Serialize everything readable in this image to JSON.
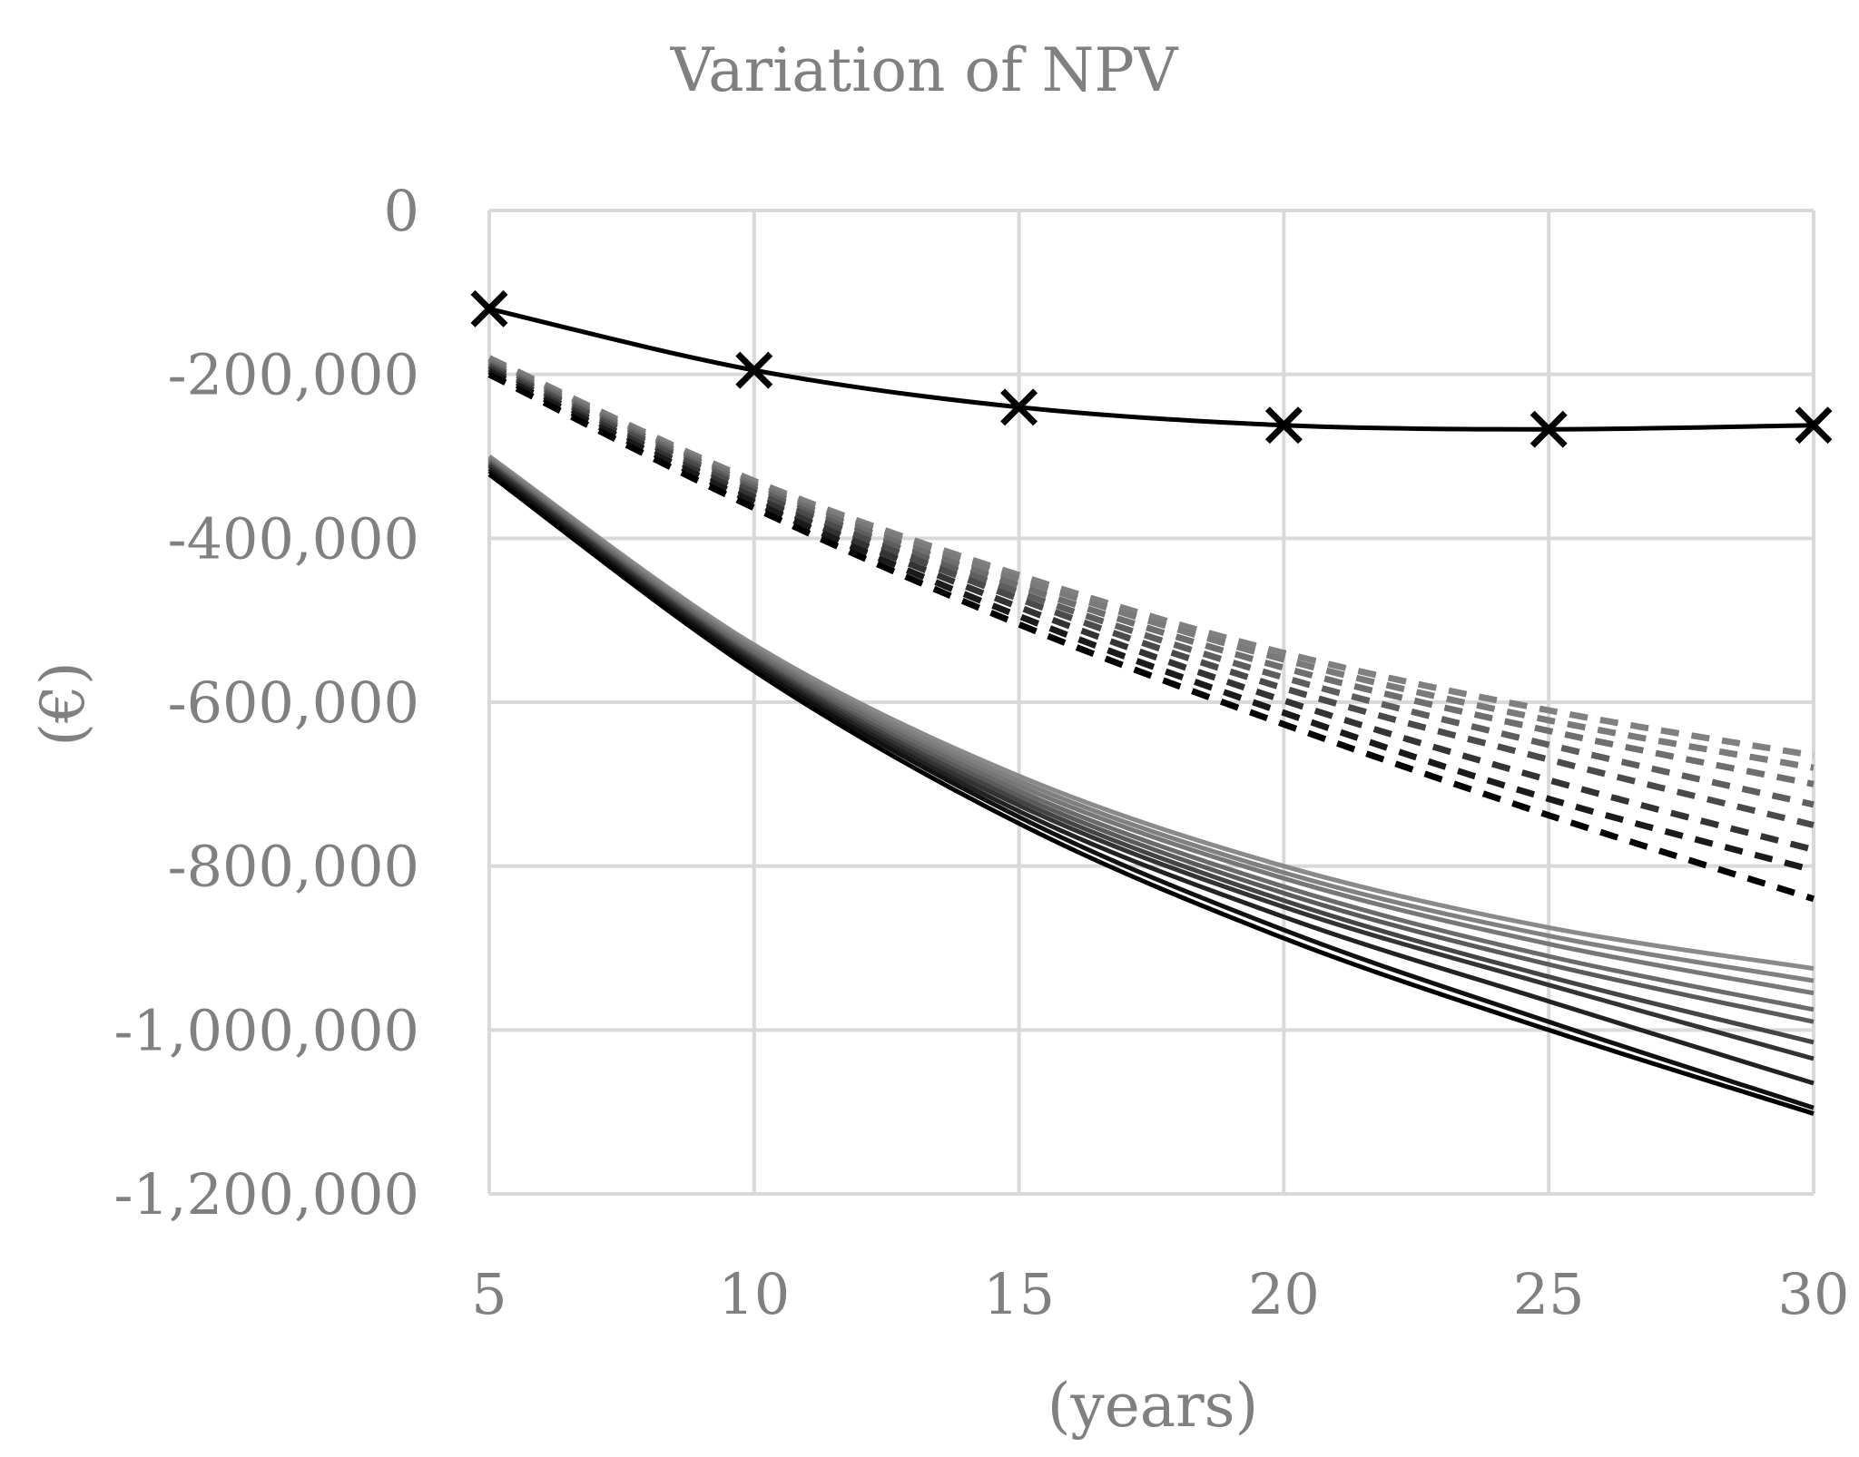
{
  "chart_data": {
    "type": "line",
    "title": "Variation of NPV",
    "xlabel": "(years)",
    "ylabel": "(€)",
    "x": [
      5,
      10,
      15,
      20,
      25,
      30
    ],
    "xlim": [
      5,
      30
    ],
    "ylim": [
      -1200000,
      0
    ],
    "x_tick_labels": [
      "5",
      "10",
      "15",
      "20",
      "25",
      "30"
    ],
    "y_ticks": [
      0,
      -200000,
      -400000,
      -600000,
      -800000,
      -1000000,
      -1200000
    ],
    "y_tick_labels": [
      "0",
      "-200,000",
      "-400,000",
      "-600,000",
      "-800,000",
      "-1,000,000",
      "-1,200,000"
    ],
    "grid": true,
    "legend": "none",
    "series": [
      {
        "name": "marked scenario",
        "style": "solid-x",
        "color": "#000000",
        "values": [
          -120000,
          -195000,
          -240000,
          -262000,
          -267000,
          -262000
        ]
      },
      {
        "name": "dashed 1",
        "style": "dashed",
        "color": "#808080",
        "values": [
          -180000,
          -330000,
          -445000,
          -540000,
          -610000,
          -665000
        ]
      },
      {
        "name": "dashed 2",
        "style": "dashed",
        "color": "#7a7a7a",
        "values": [
          -182000,
          -333000,
          -450000,
          -548000,
          -622000,
          -680000
        ]
      },
      {
        "name": "dashed 3",
        "style": "dashed",
        "color": "#6e6e6e",
        "values": [
          -185000,
          -336000,
          -458000,
          -558000,
          -635000,
          -700000
        ]
      },
      {
        "name": "dashed 4",
        "style": "dashed",
        "color": "#5e5e5e",
        "values": [
          -188000,
          -340000,
          -466000,
          -570000,
          -652000,
          -725000
        ]
      },
      {
        "name": "dashed 5",
        "style": "dashed",
        "color": "#4a4a4a",
        "values": [
          -190000,
          -344000,
          -474000,
          -583000,
          -670000,
          -750000
        ]
      },
      {
        "name": "dashed 6",
        "style": "dashed",
        "color": "#333333",
        "values": [
          -193000,
          -350000,
          -484000,
          -598000,
          -695000,
          -780000
        ]
      },
      {
        "name": "dashed 7",
        "style": "dashed",
        "color": "#1a1a1a",
        "values": [
          -196000,
          -356000,
          -495000,
          -613000,
          -718000,
          -805000
        ]
      },
      {
        "name": "dashed 8",
        "style": "dashed",
        "color": "#000000",
        "values": [
          -200000,
          -363000,
          -505000,
          -627000,
          -738000,
          -840000
        ]
      },
      {
        "name": "solid 1",
        "style": "solid",
        "color": "#8a8a8a",
        "values": [
          -300000,
          -530000,
          -690000,
          -800000,
          -875000,
          -925000
        ]
      },
      {
        "name": "solid 2",
        "style": "solid",
        "color": "#808080",
        "values": [
          -302000,
          -534000,
          -696000,
          -808000,
          -885000,
          -940000
        ]
      },
      {
        "name": "solid 3",
        "style": "solid",
        "color": "#777777",
        "values": [
          -304000,
          -537000,
          -702000,
          -815000,
          -895000,
          -955000
        ]
      },
      {
        "name": "solid 4",
        "style": "solid",
        "color": "#6a6a6a",
        "values": [
          -306000,
          -540000,
          -708000,
          -825000,
          -910000,
          -975000
        ]
      },
      {
        "name": "solid 5",
        "style": "solid",
        "color": "#5a5a5a",
        "values": [
          -308000,
          -544000,
          -714000,
          -833000,
          -920000,
          -990000
        ]
      },
      {
        "name": "solid 6",
        "style": "solid",
        "color": "#444444",
        "values": [
          -310000,
          -547000,
          -720000,
          -842000,
          -935000,
          -1015000
        ]
      },
      {
        "name": "solid 7",
        "style": "solid",
        "color": "#333333",
        "values": [
          -312000,
          -550000,
          -726000,
          -850000,
          -945000,
          -1035000
        ]
      },
      {
        "name": "solid 8",
        "style": "solid",
        "color": "#222222",
        "values": [
          -315000,
          -553000,
          -733000,
          -862000,
          -965000,
          -1065000
        ]
      },
      {
        "name": "solid 9",
        "style": "solid",
        "color": "#111111",
        "values": [
          -318000,
          -557000,
          -740000,
          -878000,
          -990000,
          -1095000
        ]
      },
      {
        "name": "solid 10",
        "style": "solid",
        "color": "#000000",
        "values": [
          -322000,
          -562000,
          -748000,
          -888000,
          -1000000,
          -1102000
        ]
      }
    ]
  }
}
